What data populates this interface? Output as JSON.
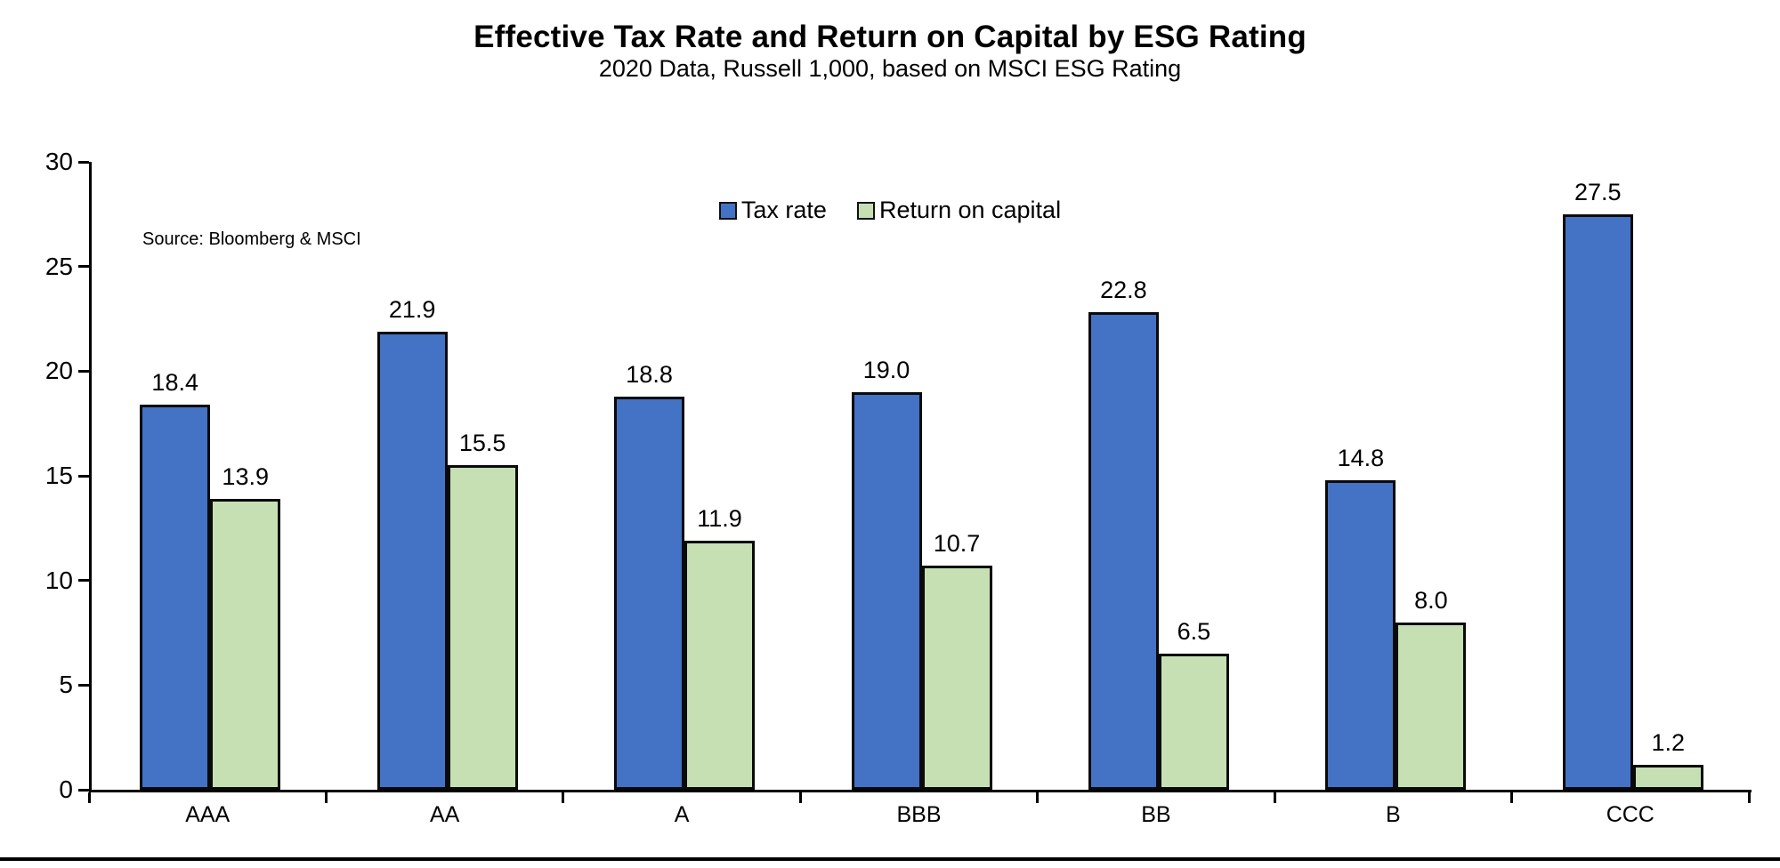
{
  "chart_data": {
    "type": "bar",
    "title": "Effective Tax Rate and Return on Capital by ESG Rating",
    "subtitle": "2020 Data, Russell 1,000, based on MSCI ESG Rating",
    "source": "Source: Bloomberg & MSCI",
    "categories": [
      "AAA",
      "AA",
      "A",
      "BBB",
      "BB",
      "B",
      "CCC"
    ],
    "series": [
      {
        "name": "Tax rate",
        "color": "#4472C4",
        "values": [
          18.4,
          21.9,
          18.8,
          19.0,
          22.8,
          14.8,
          27.5
        ]
      },
      {
        "name": "Return on capital",
        "color": "#C6E0B4",
        "values": [
          13.9,
          15.5,
          11.9,
          10.7,
          6.5,
          8.0,
          1.2
        ]
      }
    ],
    "y_axis": {
      "min": 0,
      "max": 30,
      "tick_step": 5,
      "ticks": [
        0,
        5,
        10,
        15,
        20,
        25,
        30
      ]
    },
    "value_label_decimals": 1,
    "legend_position": "top-center",
    "grid": false,
    "bar_border_color": "#0a0a0a",
    "axis_color": "#000000"
  }
}
